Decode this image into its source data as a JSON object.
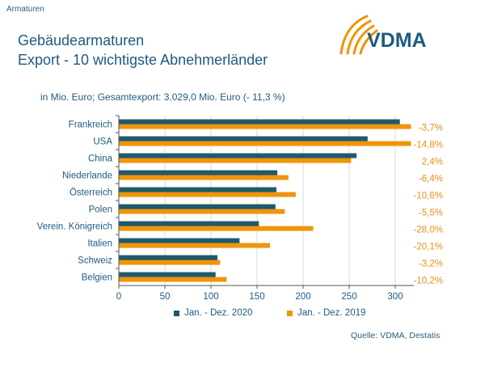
{
  "header": {
    "section_label": "Armaturen",
    "title_line1": "Gebäudearmaturen",
    "title_line2": "Export - 10 wichtigste Abnehmerländer",
    "subtitle": "in Mio. Euro; Gesamtexport: 3.029,0 Mio. Euro (- 11,3 %)"
  },
  "logo": {
    "text": "VDMA",
    "icon": "vdma-arc-logo-icon"
  },
  "footer": {
    "source": "Quelle: VDMA, Destatis"
  },
  "colors": {
    "series_2020": "#1e5a6e",
    "series_2019": "#f0940a",
    "text": "#1e5a82",
    "change": "#e8901a"
  },
  "chart_data": {
    "type": "bar",
    "orientation": "horizontal",
    "categories": [
      "Frankreich",
      "USA",
      "China",
      "Niederlande",
      "Österreich",
      "Polen",
      "Verein. Königreich",
      "Italien",
      "Schweiz",
      "Belgien"
    ],
    "series": [
      {
        "name": "Jan. - Dez. 2020",
        "values": [
          305,
          270,
          258,
          172,
          171,
          170,
          152,
          131,
          107,
          105
        ]
      },
      {
        "name": "Jan. - Dez. 2019",
        "values": [
          317,
          317,
          252,
          184,
          192,
          180,
          211,
          164,
          110,
          117
        ]
      }
    ],
    "change_labels": [
      "-3,7%",
      "-14,8%",
      "2,4%",
      "-6,4%",
      "-10,6%",
      "-5,5%",
      "-28,0%",
      "-20,1%",
      "-3,2%",
      "-10,2%"
    ],
    "x_ticks": [
      "0",
      "50",
      "100",
      "150",
      "200",
      "250",
      "300"
    ],
    "xlim": [
      0,
      320
    ],
    "grid": true,
    "legend_position": "bottom"
  }
}
